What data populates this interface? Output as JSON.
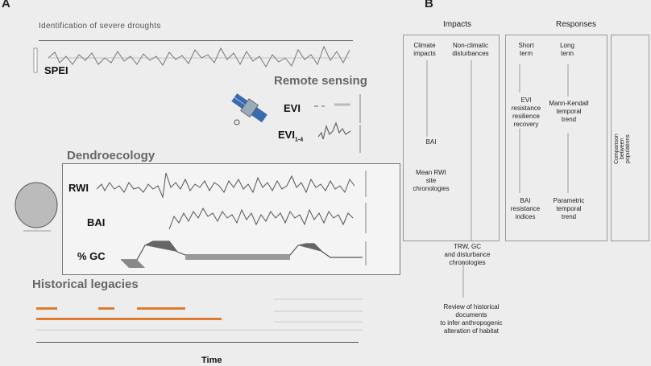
{
  "panel_a": {
    "letter": "A",
    "drought_title": "Identification of severe droughts",
    "spei_label": "SPEI",
    "remote_title": "Remote sensing",
    "evi_label": "EVI",
    "evi_sub_label": "EVI",
    "evi_sub_suffix": "1-4",
    "dendro_title": "Dendroecology",
    "rwi_label": "RWI",
    "bai_label": "BAI",
    "gc_label": "% GC",
    "historical_title": "Historical legacies",
    "time_label": "Time"
  },
  "panel_b": {
    "letter": "B",
    "impacts_header": "Impacts",
    "responses_header": "Responses",
    "climate_impacts": "Climate\nimpacts",
    "non_climatic": "Non-climatic\ndisturbances",
    "short_term": "Short\nterm",
    "long_term": "Long\nterm",
    "evi_resistance": "EVI\nresistance\nresilience\nrecovery",
    "mann_kendall": "Mann-Kendall\ntemporal\ntrend",
    "bai_ellipsis": "BAI",
    "mean_rwi": "Mean RWI\nsite\nchronologies",
    "bai_resistance": "BAI\nresistance\nindices",
    "parametric": "Parametric\ntemporal\ntrend",
    "trw_gc": "TRW, GC\nand disturbance\nchronologies",
    "review": "Review of historical\ndocuments\nto infer anthropogenic\nalteration of habitat",
    "comparison": "Comparison\nbetween\npopulations"
  }
}
